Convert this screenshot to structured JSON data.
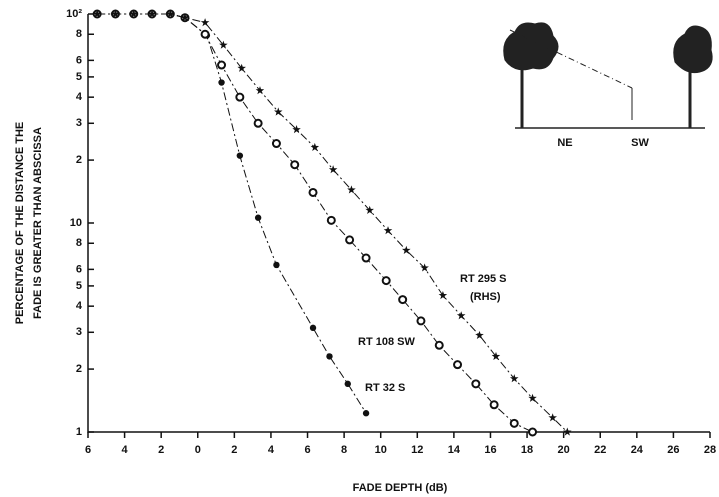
{
  "chart_data": {
    "type": "line",
    "x_label": "FADE DEPTH (dB)",
    "y_label": [
      "PERCENTAGE OF THE DISTANCE THE",
      "FADE IS GREATER THAN ABSCISSA"
    ],
    "xlim": [
      -6,
      28
    ],
    "xticks": [
      {
        "value": -6,
        "label": "6"
      },
      {
        "value": -4,
        "label": "4"
      },
      {
        "value": -2,
        "label": "2"
      },
      0,
      2,
      4,
      6,
      8,
      10,
      12,
      14,
      16,
      18,
      20,
      22,
      24,
      26,
      28
    ],
    "ylim": [
      1,
      100
    ],
    "ylog": true,
    "yticks": [
      1,
      2,
      3,
      4,
      5,
      6,
      8,
      10,
      {
        "value": 20,
        "label": "2"
      },
      {
        "value": 30,
        "label": "3"
      },
      {
        "value": 40,
        "label": "4"
      },
      {
        "value": 50,
        "label": "5"
      },
      {
        "value": 60,
        "label": "6"
      },
      {
        "value": 80,
        "label": "8"
      },
      {
        "value": 100,
        "label": "10²"
      }
    ],
    "grid": false,
    "series": [
      {
        "name": "RT 32 S",
        "color": "#111111",
        "marker": "dot",
        "x": [
          -5.5,
          -4.5,
          -3.5,
          -2.5,
          -1.5,
          -0.7,
          0.5,
          1.3,
          2.3,
          3.3,
          4.3,
          6.3,
          7.2,
          8.2,
          9.2
        ],
        "values": [
          100,
          100,
          100,
          100,
          100,
          96,
          79,
          47,
          21,
          10.6,
          6.3,
          3.15,
          2.3,
          1.7,
          1.23
        ]
      },
      {
        "name": "RT 108 SW",
        "color": "#111111",
        "marker": "circle",
        "x": [
          -5.5,
          -4.5,
          -3.5,
          -2.5,
          -1.5,
          -0.7,
          0.4,
          1.3,
          2.3,
          3.3,
          4.3,
          5.3,
          6.3,
          7.3,
          8.3,
          9.2,
          10.3,
          11.2,
          12.2,
          13.2,
          14.2,
          15.2,
          16.2,
          17.3,
          18.3
        ],
        "values": [
          100,
          100,
          100,
          100,
          100,
          96,
          80,
          57,
          40,
          30,
          24,
          19,
          14,
          10.3,
          8.3,
          6.8,
          5.3,
          4.3,
          3.4,
          2.6,
          2.1,
          1.7,
          1.35,
          1.1,
          1
        ]
      },
      {
        "name": "RT 295 S",
        "color": "#111111",
        "marker": "star",
        "x": [
          -5.5,
          -4.5,
          -3.5,
          -2.5,
          -1.5,
          -0.7,
          0.4,
          1.4,
          2.4,
          3.4,
          4.4,
          5.4,
          6.4,
          7.4,
          8.4,
          9.4,
          10.4,
          11.4,
          12.4,
          13.4,
          14.4,
          15.4,
          16.3,
          17.3,
          18.3,
          19.4,
          20.2
        ],
        "values": [
          100,
          100,
          100,
          100,
          100,
          96,
          91,
          71,
          55,
          43,
          34,
          28,
          23,
          18,
          14.4,
          11.5,
          9.2,
          7.4,
          6.1,
          4.5,
          3.6,
          2.9,
          2.3,
          1.8,
          1.45,
          1.17,
          1
        ]
      }
    ],
    "annotations": [
      "RT 295 S",
      "(RHS)",
      "RT 108 SW",
      "RT 32 S"
    ],
    "inset_labels": [
      "NE",
      "SW"
    ]
  }
}
